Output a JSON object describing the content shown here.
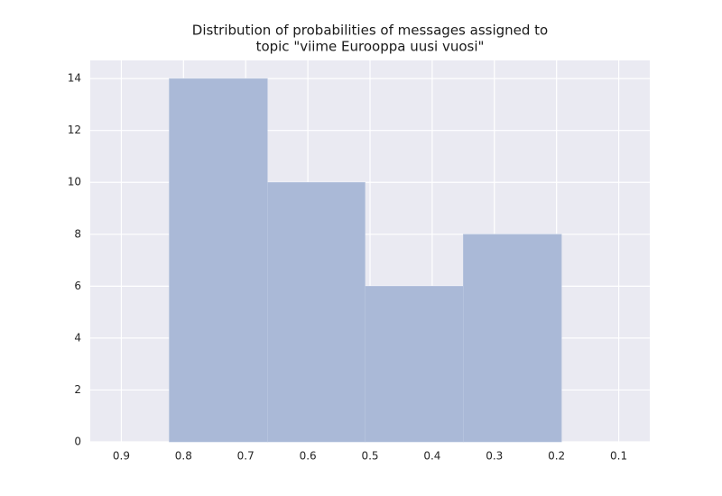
{
  "chart_data": {
    "type": "histogram",
    "title": [
      "Distribution of probabilities of messages assigned to",
      "topic \"viime Eurooppa uusi vuosi\""
    ],
    "bins": [
      0.192,
      0.35,
      0.508,
      0.665,
      0.823
    ],
    "counts": [
      8,
      6,
      10,
      14
    ],
    "color": "#aab9d7",
    "xlim": [
      0.95,
      0.05
    ],
    "xticks": [
      0.9,
      0.8,
      0.7,
      0.6,
      0.5,
      0.4,
      0.3,
      0.2,
      0.1
    ],
    "ylim": [
      0,
      14.7
    ],
    "yticks": [
      0,
      2,
      4,
      6,
      8,
      10,
      12,
      14
    ],
    "grid": true
  }
}
